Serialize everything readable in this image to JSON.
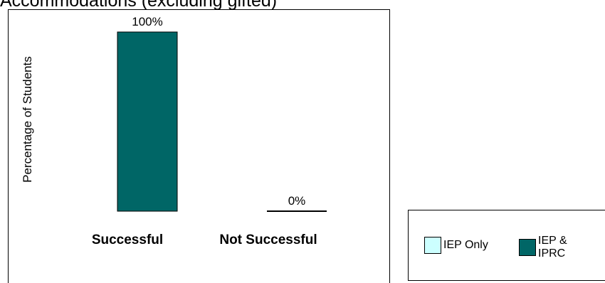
{
  "page": {
    "title": "Accommodations (excluding gifted)"
  },
  "chart_data": {
    "type": "bar",
    "categories": [
      "Successful",
      "Not Successful"
    ],
    "series": [
      {
        "name": "IEP Only",
        "values": [
          null,
          null
        ],
        "color": "#ccffff"
      },
      {
        "name": "IEP & IPRC",
        "values": [
          100,
          0
        ],
        "color": "#006666"
      }
    ],
    "data_labels": [
      "100%",
      "0%"
    ],
    "ylabel": "Percentage of Students",
    "xlabel": "",
    "ylim": [
      0,
      100
    ],
    "grid": false,
    "legend_position": "bottom-right"
  },
  "legend": {
    "items": [
      {
        "label": "IEP Only",
        "color": "#ccffff"
      },
      {
        "label": "IEP & IPRC",
        "color": "#006666"
      }
    ]
  }
}
